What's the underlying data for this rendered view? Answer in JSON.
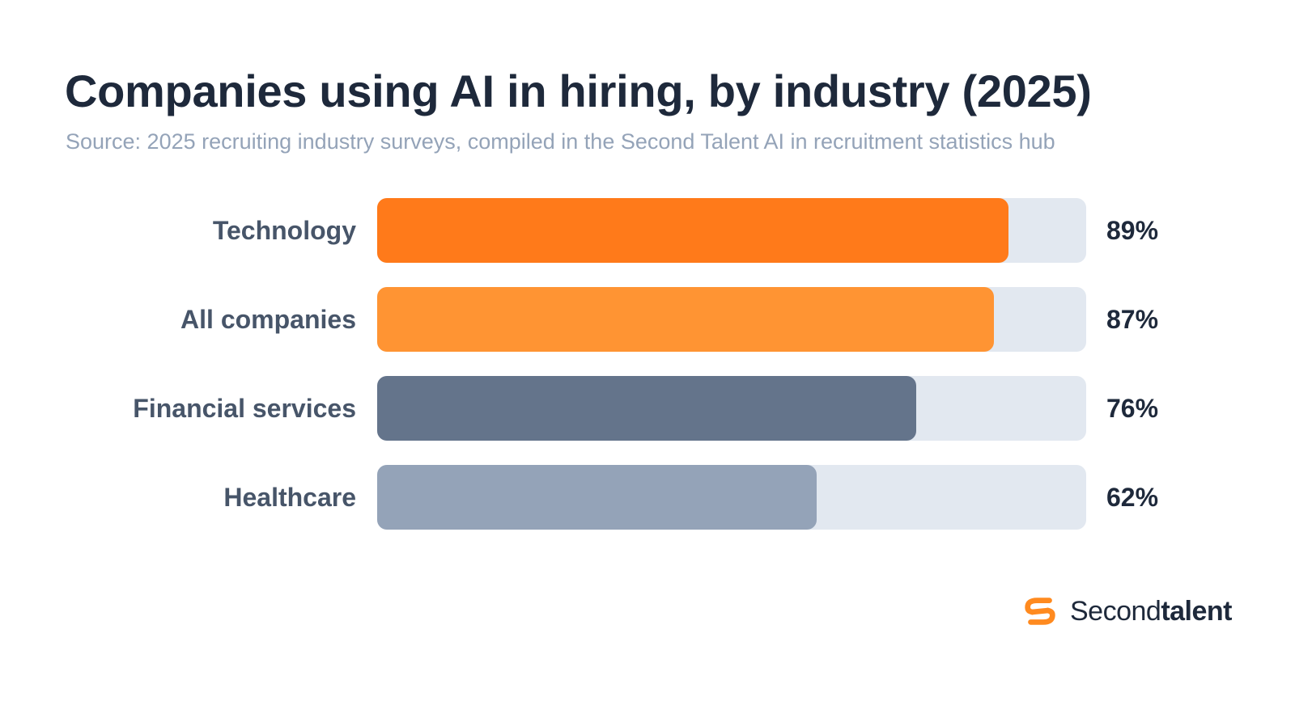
{
  "chart_data": {
    "type": "bar",
    "orientation": "horizontal",
    "title": "Companies using AI in hiring, by industry (2025)",
    "subtitle": "Source: 2025 recruiting industry surveys, compiled in the Second Talent AI in recruitment statistics hub",
    "categories": [
      "Technology",
      "All companies",
      "Financial services",
      "Healthcare"
    ],
    "values": [
      89,
      87,
      76,
      62
    ],
    "value_labels": [
      "89%",
      "87%",
      "76%",
      "62%"
    ],
    "unit": "%",
    "xlim": [
      0,
      100
    ],
    "bar_colors": [
      "#ff7a1a",
      "#ff9433",
      "#64748b",
      "#94a3b8"
    ],
    "track_color": "#e2e8f0",
    "grid": false,
    "legend": "none"
  },
  "brand": {
    "logo_icon": "secondtalent-s-logo-icon",
    "name_light": "Second",
    "name_bold": "talent",
    "logo_color": "#ff8a1f"
  }
}
